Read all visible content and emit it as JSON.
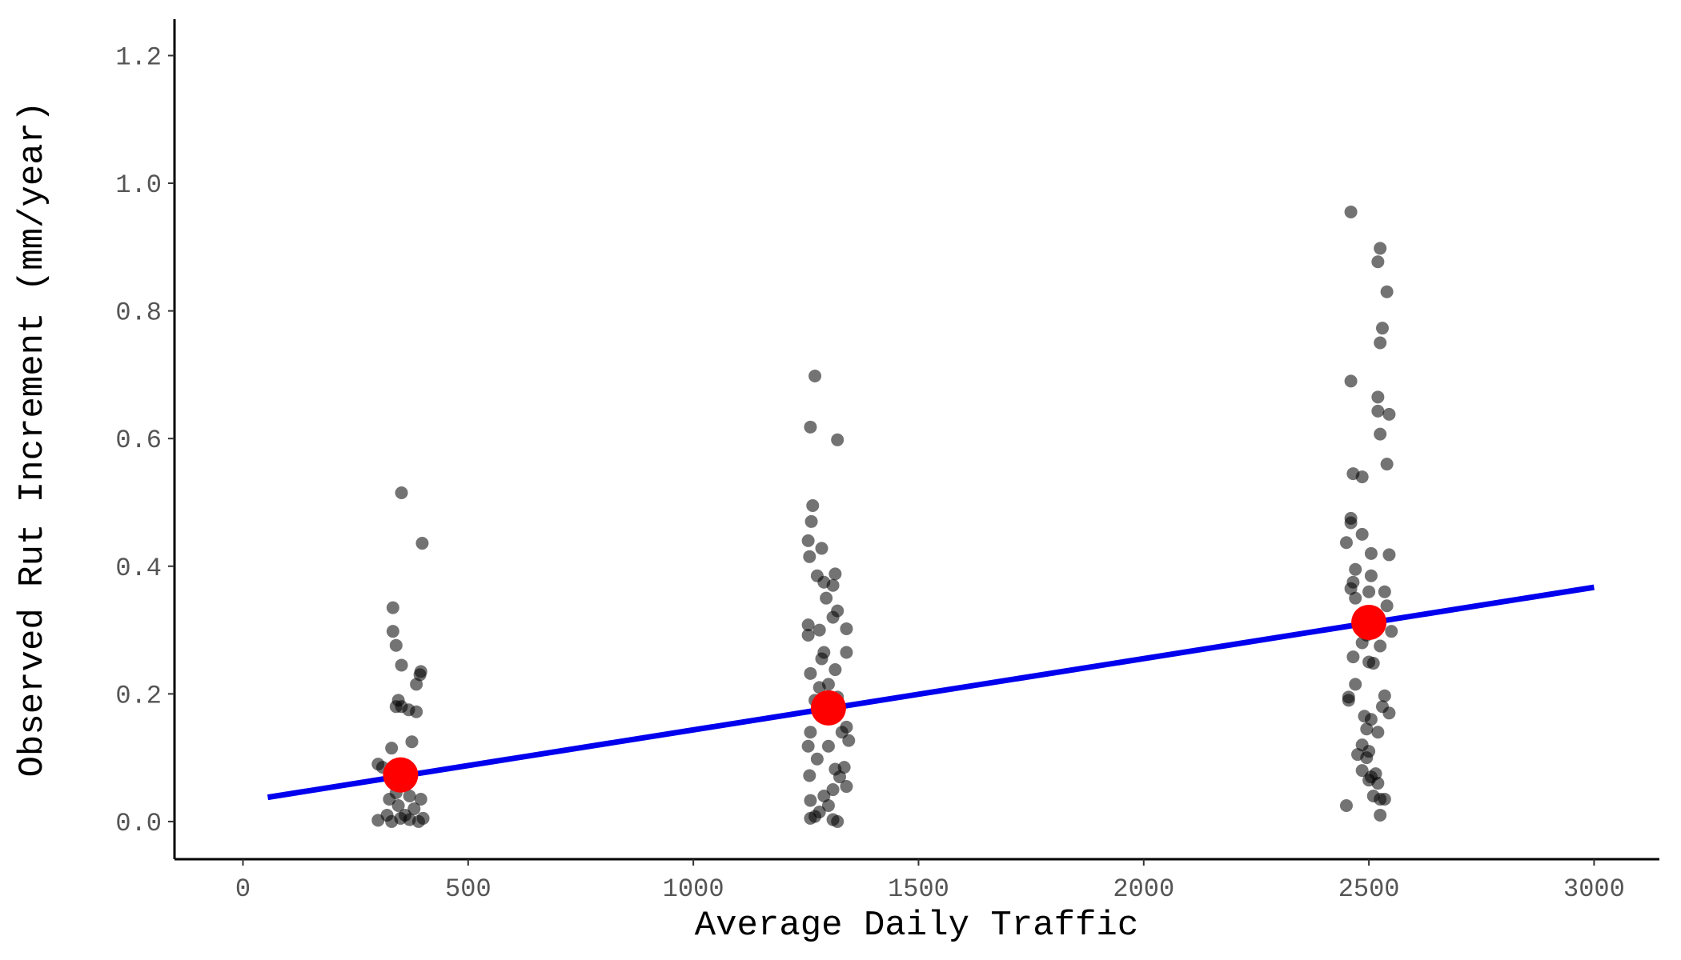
{
  "chart_data": {
    "type": "scatter",
    "x_label": "Average Daily Traffic",
    "y_label": "Observed Rut Increment (mm/year)",
    "xlim": [
      -152,
      3145
    ],
    "ylim": [
      -0.059,
      1.257
    ],
    "xticks": [
      0,
      500,
      1000,
      1500,
      2000,
      2500,
      3000
    ],
    "yticks": [
      {
        "value": 0,
        "label": "0.0"
      },
      {
        "value": 0.2,
        "label": "0.2"
      },
      {
        "value": 0.4,
        "label": "0.4"
      },
      {
        "value": 0.6,
        "label": "0.6"
      },
      {
        "value": 0.8,
        "label": "0.8"
      },
      {
        "value": 1.0,
        "label": "1.0"
      },
      {
        "value": 1.2,
        "label": "1.2"
      }
    ],
    "series": [
      {
        "type": "scatter",
        "color": "#000000",
        "opacity": 0.55,
        "x": [
          333,
          333,
          340,
          352,
          395,
          393,
          385,
          345,
          352,
          368,
          385,
          340,
          375,
          330,
          300,
          310,
          360,
          340,
          325,
          395,
          380,
          320,
          350,
          370,
          300,
          390,
          330,
          360,
          400,
          345,
          370,
          352,
          398,
          1270,
          1260,
          1320,
          1265,
          1262,
          1255,
          1258,
          1285,
          1315,
          1275,
          1290,
          1310,
          1295,
          1320,
          1310,
          1255,
          1340,
          1280,
          1255,
          1290,
          1340,
          1285,
          1315,
          1260,
          1300,
          1280,
          1320,
          1270,
          1340,
          1330,
          1260,
          1345,
          1300,
          1255,
          1275,
          1315,
          1335,
          1325,
          1258,
          1340,
          1310,
          1290,
          1260,
          1300,
          1280,
          1260,
          1310,
          1320,
          1270,
          2460,
          2525,
          2520,
          2540,
          2530,
          2525,
          2460,
          2520,
          2520,
          2545,
          2525,
          2540,
          2465,
          2485,
          2460,
          2460,
          2485,
          2450,
          2505,
          2545,
          2470,
          2505,
          2465,
          2460,
          2500,
          2535,
          2470,
          2540,
          2490,
          2550,
          2495,
          2525,
          2485,
          2500,
          2510,
          2465,
          2470,
          2455,
          2455,
          2535,
          2545,
          2490,
          2530,
          2505,
          2520,
          2495,
          2485,
          2500,
          2475,
          2495,
          2485,
          2515,
          2505,
          2520,
          2500,
          2510,
          2535,
          2525,
          2450,
          2525
        ],
        "values": [
          0.335,
          0.298,
          0.276,
          0.245,
          0.235,
          0.23,
          0.215,
          0.19,
          0.18,
          0.175,
          0.172,
          0.18,
          0.125,
          0.115,
          0.09,
          0.085,
          0.06,
          0.045,
          0.035,
          0.035,
          0.02,
          0.01,
          0.005,
          0.003,
          0.002,
          0.0,
          0.0,
          0.01,
          0.005,
          0.025,
          0.04,
          0.515,
          0.436,
          0.698,
          0.618,
          0.598,
          0.495,
          0.47,
          0.44,
          0.415,
          0.428,
          0.388,
          0.385,
          0.375,
          0.37,
          0.35,
          0.33,
          0.32,
          0.308,
          0.302,
          0.3,
          0.292,
          0.265,
          0.265,
          0.255,
          0.238,
          0.232,
          0.215,
          0.21,
          0.195,
          0.19,
          0.148,
          0.14,
          0.14,
          0.127,
          0.118,
          0.118,
          0.098,
          0.082,
          0.085,
          0.07,
          0.072,
          0.055,
          0.05,
          0.04,
          0.033,
          0.025,
          0.015,
          0.005,
          0.003,
          0.0,
          0.008,
          0.955,
          0.898,
          0.877,
          0.83,
          0.773,
          0.75,
          0.69,
          0.665,
          0.643,
          0.638,
          0.607,
          0.56,
          0.545,
          0.54,
          0.475,
          0.468,
          0.45,
          0.437,
          0.42,
          0.418,
          0.395,
          0.385,
          0.375,
          0.365,
          0.36,
          0.36,
          0.35,
          0.338,
          0.32,
          0.298,
          0.292,
          0.275,
          0.28,
          0.25,
          0.248,
          0.258,
          0.215,
          0.195,
          0.19,
          0.197,
          0.17,
          0.165,
          0.18,
          0.16,
          0.14,
          0.145,
          0.12,
          0.11,
          0.105,
          0.1,
          0.08,
          0.075,
          0.07,
          0.06,
          0.065,
          0.04,
          0.035,
          0.035,
          0.025,
          0.01
        ]
      },
      {
        "type": "line",
        "color": "#0000ee",
        "x": [
          55,
          3000
        ],
        "values": [
          0.038,
          0.367
        ]
      },
      {
        "type": "scatter",
        "color": "#ff0000",
        "opacity": 1,
        "size": "large",
        "x": [
          350,
          1300,
          2500
        ],
        "values": [
          0.073,
          0.178,
          0.312
        ]
      }
    ]
  }
}
